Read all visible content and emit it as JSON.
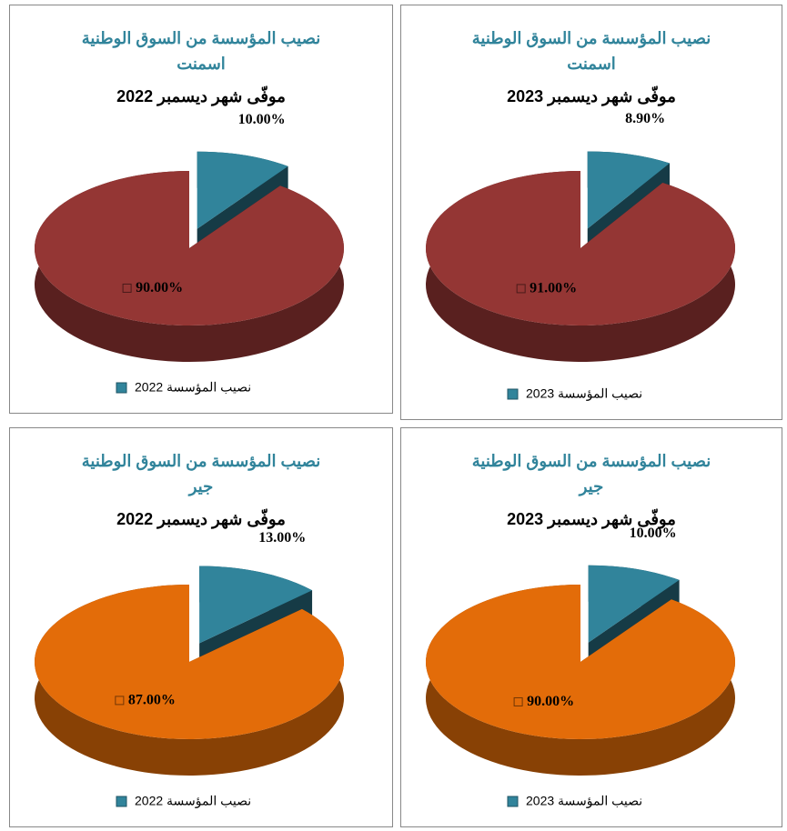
{
  "chart_data": [
    {
      "type": "pie",
      "title": "نصيب المؤسسة من السوق الوطنية",
      "subtitle": "اسمنت",
      "period": "موفّى شهر ديسمبر 2022",
      "categories": [
        "نصيب المؤسسة 2022",
        null
      ],
      "values": [
        10,
        90
      ],
      "value_labels": [
        "10.00%",
        "90.00%"
      ],
      "colors": [
        "#31849b",
        "#943634"
      ],
      "legend": "bottom"
    },
    {
      "type": "pie",
      "title": "نصيب المؤسسة من السوق الوطنية",
      "subtitle": "اسمنت",
      "period": "موفّى شهر ديسمبر 2023",
      "categories": [
        "نصيب المؤسسة 2023",
        null
      ],
      "values": [
        8.9,
        91
      ],
      "value_labels": [
        "8.90%",
        "91.00%"
      ],
      "colors": [
        "#31849b",
        "#943634"
      ],
      "legend": "bottom"
    },
    {
      "type": "pie",
      "title": "نصيب المؤسسة من السوق الوطنية",
      "subtitle": "جير",
      "period": "موفّى شهر ديسمبر 2022",
      "categories": [
        "نصيب المؤسسة 2022",
        null
      ],
      "values": [
        13,
        87
      ],
      "value_labels": [
        "13.00%",
        "87.00%"
      ],
      "colors": [
        "#31849b",
        "#e36c09"
      ],
      "legend": "bottom"
    },
    {
      "type": "pie",
      "title": "نصيب المؤسسة من السوق الوطنية",
      "subtitle": "جير",
      "period": "موفّى شهر ديسمبر 2023",
      "categories": [
        "نصيب المؤسسة 2023",
        null
      ],
      "values": [
        10,
        90
      ],
      "value_labels": [
        "10.00%",
        "90.00%"
      ],
      "colors": [
        "#31849b",
        "#e36c09"
      ],
      "legend": "bottom"
    }
  ]
}
